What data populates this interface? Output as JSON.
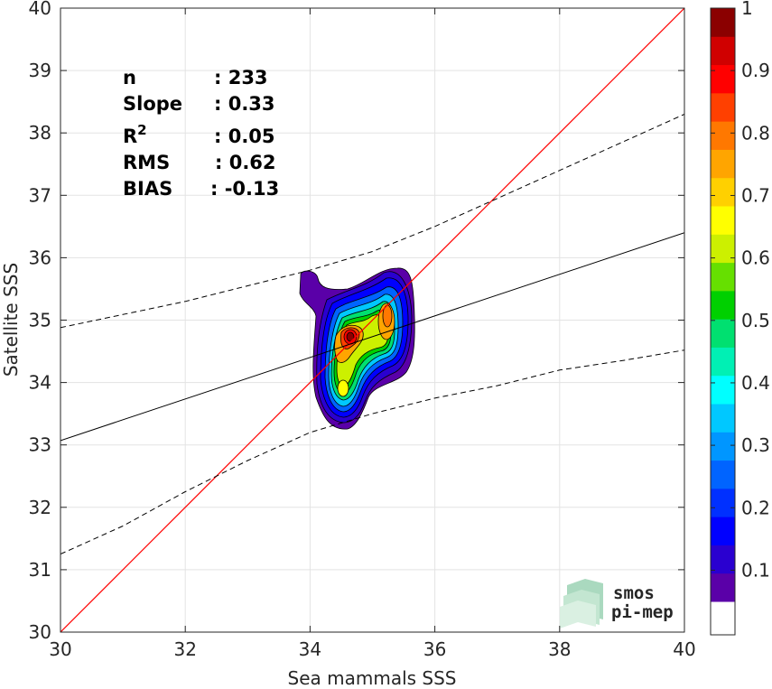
{
  "chart_data": {
    "type": "scatter",
    "subtype": "density-contour",
    "xlabel": "Sea mammals SSS",
    "ylabel": "Satellite SSS",
    "xlim": [
      30,
      40
    ],
    "ylim": [
      30,
      40
    ],
    "xticks": [
      "30",
      "32",
      "34",
      "36",
      "38",
      "40"
    ],
    "yticks": [
      "30",
      "31",
      "32",
      "33",
      "34",
      "35",
      "36",
      "37",
      "38",
      "39",
      "40"
    ],
    "grid": true,
    "stats": [
      {
        "label": "n",
        "value": ": 233"
      },
      {
        "label": "Slope",
        "value": ": 0.33"
      },
      {
        "label": "R",
        "sup": "2",
        "value": ": 0.05"
      },
      {
        "label": "RMS",
        "value": ": 0.62"
      },
      {
        "label": "BIAS",
        "value": ": -0.13"
      }
    ],
    "lines": {
      "identity": {
        "from": [
          30,
          30
        ],
        "to": [
          40,
          40
        ],
        "color": "#ff0000"
      },
      "regression": {
        "from": [
          30,
          33.07
        ],
        "to": [
          40,
          36.4
        ],
        "color": "#000000"
      },
      "upper_bound": [
        [
          30,
          34.88
        ],
        [
          32,
          35.3
        ],
        [
          34,
          35.8
        ],
        [
          35,
          36.1
        ],
        [
          36,
          36.5
        ],
        [
          37,
          36.95
        ],
        [
          38,
          37.4
        ],
        [
          39,
          37.85
        ],
        [
          40,
          38.3
        ]
      ],
      "lower_bound": [
        [
          30,
          31.25
        ],
        [
          31,
          31.7
        ],
        [
          32,
          32.25
        ],
        [
          33,
          32.75
        ],
        [
          34,
          33.2
        ],
        [
          35,
          33.5
        ],
        [
          36,
          33.75
        ],
        [
          37,
          33.95
        ],
        [
          38,
          34.2
        ],
        [
          39,
          34.35
        ],
        [
          40,
          34.52
        ]
      ]
    },
    "colorbar": {
      "min": 0.05,
      "max": 1.0,
      "tick_labels": [
        "1",
        "0.9",
        "0.8",
        "0.7",
        "0.6",
        "0.5",
        "0.4",
        "0.3",
        "0.2",
        "0.1"
      ],
      "tick_values": [
        1.0,
        0.9,
        0.8,
        0.7,
        0.6,
        0.5,
        0.4,
        0.3,
        0.2,
        0.1
      ],
      "bands": [
        "#5a00a8",
        "#2a00d0",
        "#0000ff",
        "#0030ff",
        "#0064ff",
        "#0096ff",
        "#00c8ff",
        "#00ffff",
        "#00f0b4",
        "#00e070",
        "#00d000",
        "#66e000",
        "#ccf000",
        "#ffff00",
        "#ffd000",
        "#ffa500",
        "#ff7800",
        "#ff4000",
        "#ff0000",
        "#d00000",
        "#8b0000"
      ]
    },
    "density_peaks": [
      {
        "x": 34.65,
        "y": 34.72,
        "level": 0.98
      },
      {
        "x": 35.25,
        "y": 34.98,
        "level": 0.75
      },
      {
        "x": 34.55,
        "y": 33.85,
        "level": 0.62
      }
    ]
  },
  "logo": {
    "line1": "smos",
    "line2": "pi-mep"
  }
}
